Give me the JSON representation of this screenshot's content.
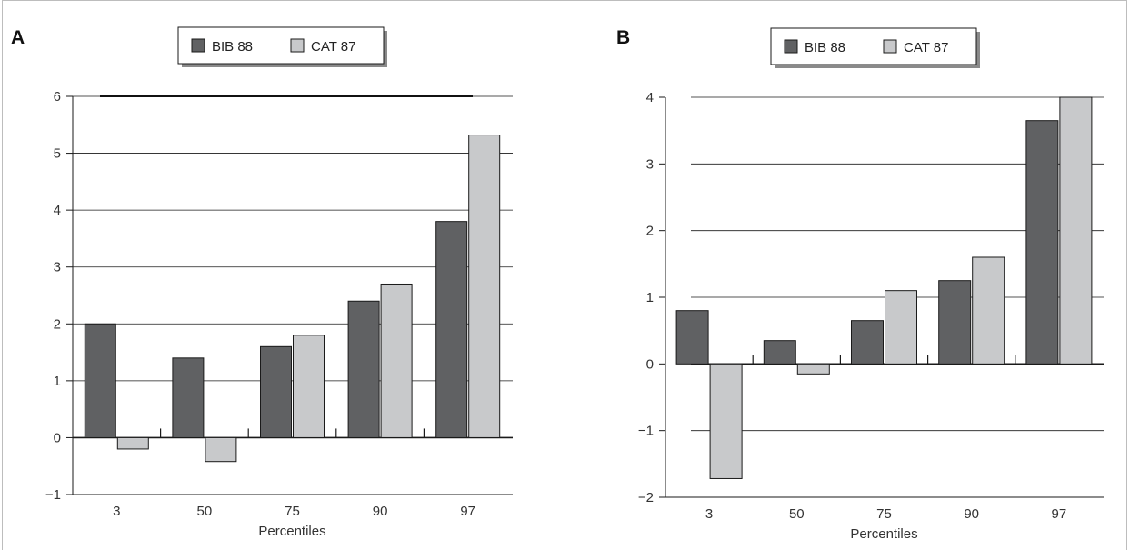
{
  "chart_data": [
    {
      "type": "bar",
      "panel_label": "A",
      "categories": [
        "3",
        "50",
        "75",
        "90",
        "97"
      ],
      "xlabel": "Percentiles",
      "ylabel": "",
      "ylim": [
        -1,
        6
      ],
      "yticks": [
        "−1",
        "0",
        "1",
        "2",
        "3",
        "4",
        "5",
        "6"
      ],
      "grid": true,
      "legend_position": "top-center",
      "series": [
        {
          "name": "BIB 88",
          "color": "#606163",
          "values": [
            2.0,
            1.4,
            1.6,
            2.4,
            3.8
          ]
        },
        {
          "name": "CAT 87",
          "color": "#c8c9cb",
          "values": [
            -0.2,
            -0.42,
            1.8,
            2.7,
            5.32
          ]
        }
      ]
    },
    {
      "type": "bar",
      "panel_label": "B",
      "categories": [
        "3",
        "50",
        "75",
        "90",
        "97"
      ],
      "xlabel": "Percentiles",
      "ylabel": "",
      "ylim": [
        -2,
        4
      ],
      "yticks": [
        "−2",
        "−1",
        "0",
        "1",
        "2",
        "3",
        "4"
      ],
      "grid": true,
      "legend_position": "top-center",
      "series": [
        {
          "name": "BIB 88",
          "color": "#606163",
          "values": [
            0.8,
            0.35,
            0.65,
            1.25,
            3.65
          ]
        },
        {
          "name": "CAT 87",
          "color": "#c8c9cb",
          "values": [
            -1.72,
            -0.15,
            1.1,
            1.6,
            4.0
          ]
        }
      ]
    }
  ]
}
